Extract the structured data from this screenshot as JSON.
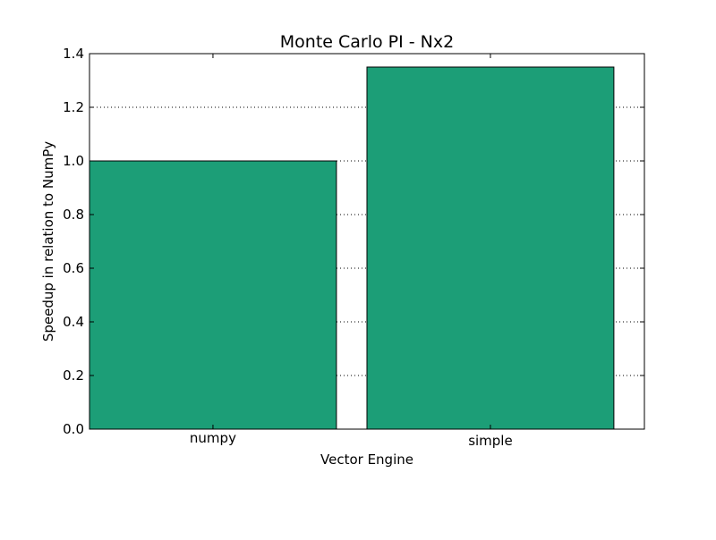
{
  "chart_data": {
    "type": "bar",
    "title": "Monte Carlo PI - Nx2",
    "xlabel": "Vector Engine",
    "ylabel": "Speedup in relation to NumPy",
    "categories": [
      "numpy",
      "simple"
    ],
    "values": [
      1.0,
      1.35
    ],
    "ylim": [
      0.0,
      1.4
    ],
    "yticks": [
      "0.0",
      "0.2",
      "0.4",
      "0.6",
      "0.8",
      "1.0",
      "1.2",
      "1.4"
    ],
    "grid": "y-axis dotted",
    "bar_color": "#1c9e77"
  }
}
